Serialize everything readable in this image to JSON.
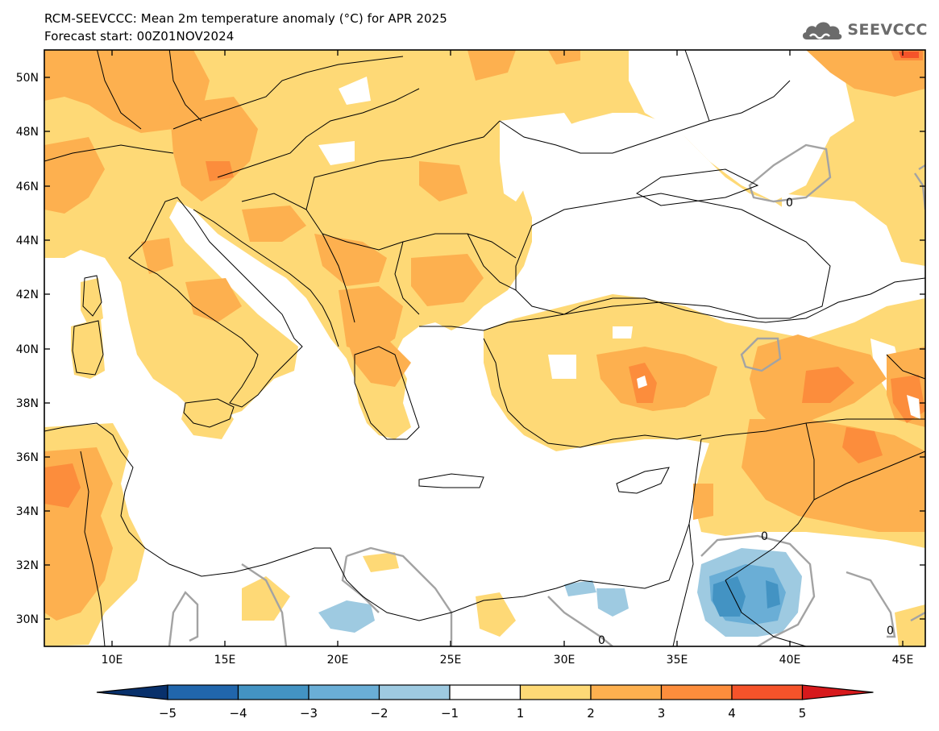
{
  "title_line1": "RCM-SEEVCCC: Mean 2m temperature anomaly (°C) for APR 2025",
  "title_line2": "Forecast start: 00Z01NOV2024",
  "logo_text": "SEEVCCC",
  "logo_icon": "cloud-icon",
  "map": {
    "lon_range": [
      7,
      46
    ],
    "lat_range": [
      29,
      51
    ],
    "lon_ticks": [
      "10E",
      "15E",
      "20E",
      "25E",
      "30E",
      "35E",
      "40E",
      "45E"
    ],
    "lat_ticks": [
      "30N",
      "32N",
      "34N",
      "36N",
      "38N",
      "40N",
      "42N",
      "44N",
      "46N",
      "48N",
      "50N"
    ],
    "contour_label": "0"
  },
  "colorbar": {
    "tick_labels": [
      "−5",
      "−4",
      "−3",
      "−2",
      "−1",
      "1",
      "2",
      "3",
      "4",
      "5"
    ],
    "bins": [
      {
        "range": "<-5",
        "color": "#08306b"
      },
      {
        "range": "-5..-4",
        "color": "#2166ac"
      },
      {
        "range": "-4..-3",
        "color": "#4393c3"
      },
      {
        "range": "-3..-2",
        "color": "#6aaed6"
      },
      {
        "range": "-2..-1",
        "color": "#9ecae1"
      },
      {
        "range": "-1..1",
        "color": "#ffffff"
      },
      {
        "range": "1..2",
        "color": "#fed976"
      },
      {
        "range": "2..3",
        "color": "#fdb04f"
      },
      {
        "range": "3..4",
        "color": "#fc8d3c"
      },
      {
        "range": "4..5",
        "color": "#f5532a"
      },
      {
        "range": ">5",
        "color": "#d7191c"
      }
    ]
  }
}
